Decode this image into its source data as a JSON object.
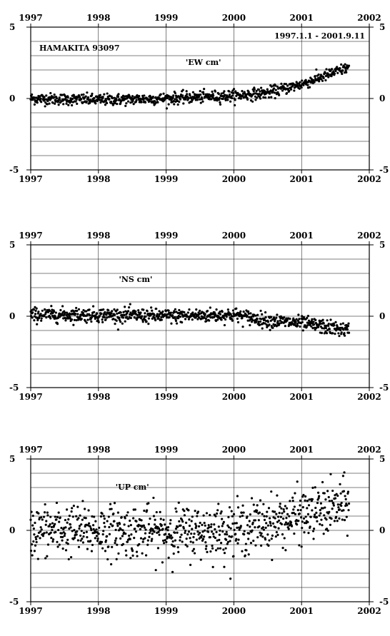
{
  "chart_data": [
    {
      "type": "scatter",
      "name": "EW",
      "title": "'EW cm'",
      "station": "HAMAKITA   93097",
      "date_range": "1997.1.1 - 2001.9.11",
      "xlim": [
        1997,
        2002
      ],
      "ylim": [
        -5,
        5
      ],
      "x_ticks": [
        "1997",
        "1998",
        "1999",
        "2000",
        "2001",
        "2002"
      ],
      "y_ticks": [
        "5",
        "0",
        "-5"
      ],
      "grid": "horizontal every 1 cm, vertical every year",
      "trend": [
        [
          1997.0,
          0.0
        ],
        [
          1998.0,
          -0.1
        ],
        [
          1999.0,
          0.0
        ],
        [
          2000.0,
          0.2
        ],
        [
          2000.5,
          0.4
        ],
        [
          2001.0,
          1.0
        ],
        [
          2001.7,
          2.2
        ]
      ],
      "noise_cm": 0.2
    },
    {
      "type": "scatter",
      "name": "NS",
      "title": "'NS cm'",
      "xlim": [
        1997,
        2002
      ],
      "ylim": [
        -5,
        5
      ],
      "x_ticks": [
        "1997",
        "1998",
        "1999",
        "2000",
        "2001",
        "2002"
      ],
      "y_ticks": [
        "5",
        "0",
        "-5"
      ],
      "grid": "horizontal every 1 cm, vertical every year",
      "trend": [
        [
          1997.0,
          0.1
        ],
        [
          1998.0,
          0.1
        ],
        [
          1999.0,
          0.0
        ],
        [
          2000.0,
          0.1
        ],
        [
          2000.5,
          -0.3
        ],
        [
          2001.0,
          -0.5
        ],
        [
          2001.7,
          -1.0
        ]
      ],
      "noise_cm": 0.25
    },
    {
      "type": "scatter",
      "name": "UP",
      "title": "'UP cm'",
      "xlim": [
        1997,
        2002
      ],
      "ylim": [
        -5,
        5
      ],
      "x_ticks": [
        "1997",
        "1998",
        "1999",
        "2000",
        "2001",
        "2002"
      ],
      "y_ticks": [
        "5",
        "0",
        "-5"
      ],
      "grid": "horizontal every 1 cm, vertical every year",
      "trend": [
        [
          1997.0,
          0.0
        ],
        [
          1998.0,
          0.0
        ],
        [
          1999.0,
          -0.1
        ],
        [
          2000.0,
          0.0
        ],
        [
          2000.5,
          0.5
        ],
        [
          2001.0,
          1.0
        ],
        [
          2001.7,
          1.8
        ]
      ],
      "noise_cm": 0.9
    }
  ]
}
